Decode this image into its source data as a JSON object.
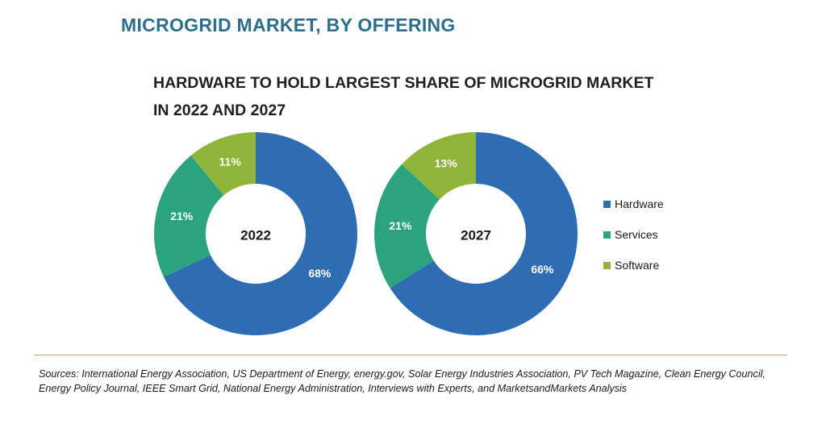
{
  "header": {
    "title": "MICROGRID MARKET, BY OFFERING",
    "subtitle_line1": "HARDWARE TO HOLD LARGEST SHARE OF MICROGRID MARKET",
    "subtitle_line2": "IN 2022 AND 2027"
  },
  "chart_data": [
    {
      "type": "pie",
      "center_label": "2022",
      "categories": [
        "Hardware",
        "Services",
        "Software"
      ],
      "values": [
        68,
        21,
        11
      ],
      "labels": [
        "68%",
        "21%",
        "11%"
      ],
      "colors": [
        "#2e6db4",
        "#2aa37e",
        "#8fb43a"
      ]
    },
    {
      "type": "pie",
      "center_label": "2027",
      "categories": [
        "Hardware",
        "Services",
        "Software"
      ],
      "values": [
        66,
        21,
        13
      ],
      "labels": [
        "66%",
        "21%",
        "13%"
      ],
      "colors": [
        "#2e6db4",
        "#2aa37e",
        "#8fb43a"
      ]
    }
  ],
  "legend": {
    "placement": "right",
    "items": [
      {
        "label": "Hardware",
        "color": "#2e6db4"
      },
      {
        "label": "Services",
        "color": "#2aa37e"
      },
      {
        "label": "Software",
        "color": "#8fb43a"
      }
    ]
  },
  "footer": {
    "sources": "Sources: International Energy Association, US Department of Energy, energy.gov, Solar Energy Industries Association, PV Tech Magazine, Clean Energy Council, Energy Policy Journal, IEEE Smart Grid, National Energy Administration, Interviews with Experts, and MarketsandMarkets Analysis"
  }
}
